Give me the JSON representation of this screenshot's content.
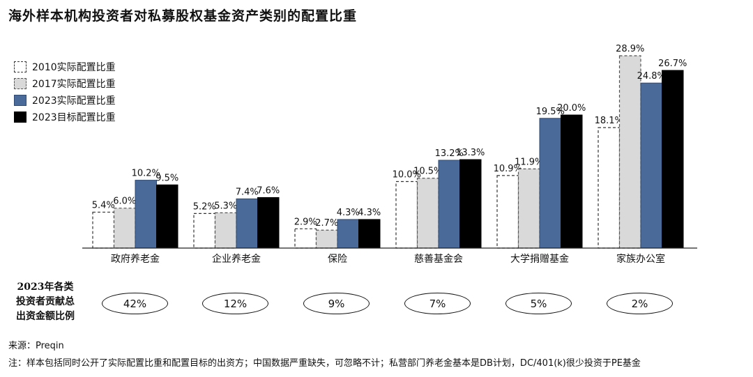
{
  "header": {
    "title": "海外样本机构投资者对私募股权基金资产类别的配置比重"
  },
  "chart_data": {
    "type": "bar",
    "categories": [
      "政府养老金",
      "企业养老金",
      "保险",
      "慈善基金会",
      "大学捐赠基金",
      "家族办公室"
    ],
    "series": [
      {
        "name": "2010实际配置比重",
        "values": [
          5.4,
          5.2,
          2.9,
          10.0,
          10.9,
          18.1
        ],
        "labels": [
          "5.4%",
          "5.2%",
          "2.9%",
          "10.0%",
          "10.9%",
          "18.1%"
        ],
        "fill": "#ffffff",
        "stroke": "#333333",
        "dashed": true
      },
      {
        "name": "2017实际配置比重",
        "values": [
          6.0,
          5.3,
          2.7,
          10.5,
          11.9,
          28.9
        ],
        "labels": [
          "6.0%",
          "5.3%",
          "2.7%",
          "10.5%",
          "11.9%",
          "28.9%"
        ],
        "fill": "#d9d9d9",
        "stroke": "#555555",
        "dashed": true
      },
      {
        "name": "2023实际配置比重",
        "values": [
          10.2,
          7.4,
          4.3,
          13.2,
          19.5,
          24.8
        ],
        "labels": [
          "10.2%",
          "7.4%",
          "4.3%",
          "13.2%",
          "19.5%",
          "24.8%"
        ],
        "fill": "#4a6a9a",
        "stroke": "#2e4a75",
        "dashed": false
      },
      {
        "name": "2023目标配置比重",
        "values": [
          9.5,
          7.6,
          4.3,
          13.3,
          20.0,
          26.7
        ],
        "labels": [
          "9.5%",
          "7.6%",
          "4.3%",
          "13.3%",
          "20.0%",
          "26.7%"
        ],
        "fill": "#000000",
        "stroke": "#000000",
        "dashed": false
      }
    ],
    "ylim": [
      0,
      30
    ],
    "legend": "top-left"
  },
  "contributions": {
    "label_lines": [
      "2023年各类",
      "投资者贡献总",
      "出资金额比例"
    ],
    "values": [
      "42%",
      "12%",
      "9%",
      "7%",
      "5%",
      "2%"
    ]
  },
  "footer": {
    "source": "来源：Preqin",
    "note": "注：样本包括同时公开了实际配置比重和配置目标的出资方；中国数据严重缺失，可忽略不计；私营部门养老金基本是DB计划，DC/401(k)很少投资于PE基金"
  }
}
